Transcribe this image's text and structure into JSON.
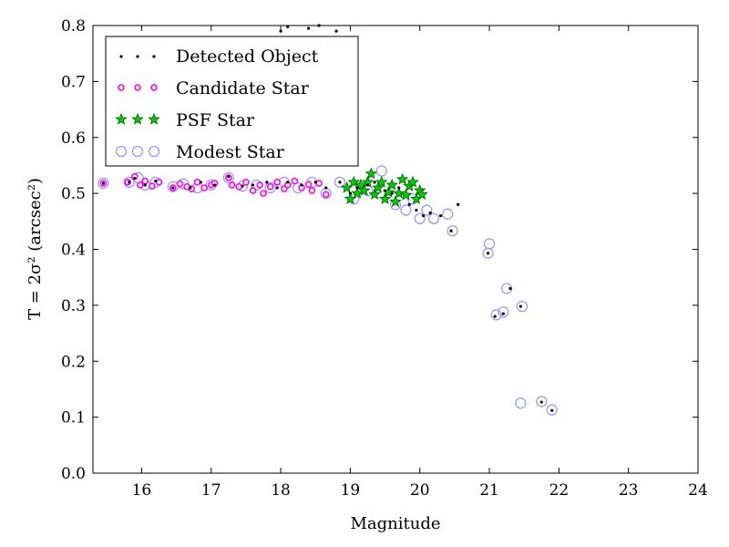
{
  "chart_data": {
    "type": "scatter",
    "title": "",
    "xlabel": "Magnitude",
    "ylabel": "T = 2σ² (arcsec²)",
    "xlim": [
      15.3,
      24
    ],
    "ylim": [
      0.0,
      0.8
    ],
    "xticks": [
      "16",
      "17",
      "18",
      "19",
      "20",
      "21",
      "22",
      "23",
      "24"
    ],
    "yticks": [
      "0.0",
      "0.1",
      "0.2",
      "0.3",
      "0.4",
      "0.5",
      "0.6",
      "0.7",
      "0.8"
    ],
    "grid": false,
    "legend_position": "top-left",
    "colors": {
      "detected": "#000000",
      "candidate": "#ff00ff",
      "psf_fill": "#00cc00",
      "psf_edge": "#006400",
      "modest": "#9999ff"
    },
    "series": [
      {
        "name": "Detected Object",
        "marker": "dot",
        "x": [
          15.45,
          15.82,
          15.9,
          16.05,
          16.2,
          16.45,
          16.7,
          16.85,
          17.05,
          17.25,
          17.45,
          17.6,
          17.8,
          17.95,
          18.1,
          18.3,
          18.5,
          18.65,
          18.85,
          19.0,
          19.1,
          19.25,
          19.35,
          19.5,
          19.6,
          19.7,
          19.85,
          19.95,
          20.05,
          20.15,
          20.3,
          20.45,
          20.55,
          20.98,
          21.08,
          21.2,
          21.3,
          21.45,
          21.75,
          21.9,
          18.0,
          18.1,
          18.4,
          18.55,
          18.8
        ],
        "y": [
          0.518,
          0.52,
          0.527,
          0.515,
          0.522,
          0.51,
          0.51,
          0.52,
          0.515,
          0.53,
          0.513,
          0.515,
          0.52,
          0.51,
          0.52,
          0.515,
          0.52,
          0.51,
          0.52,
          0.5,
          0.51,
          0.515,
          0.52,
          0.505,
          0.5,
          0.51,
          0.48,
          0.47,
          0.46,
          0.465,
          0.46,
          0.433,
          0.48,
          0.393,
          0.28,
          0.285,
          0.33,
          0.298,
          0.127,
          0.112,
          0.79,
          0.798,
          0.795,
          0.8,
          0.79
        ]
      },
      {
        "name": "Candidate Star",
        "marker": "circle",
        "x": [
          15.45,
          15.8,
          15.9,
          15.98,
          16.05,
          16.15,
          16.25,
          16.45,
          16.55,
          16.65,
          16.72,
          16.8,
          16.9,
          17.0,
          17.05,
          17.25,
          17.3,
          17.4,
          17.5,
          17.6,
          17.7,
          17.75,
          17.85,
          17.95,
          18.05,
          18.1,
          18.2,
          18.3,
          18.4,
          18.45,
          18.55,
          18.65
        ],
        "y": [
          0.518,
          0.52,
          0.53,
          0.515,
          0.522,
          0.513,
          0.52,
          0.51,
          0.517,
          0.512,
          0.508,
          0.52,
          0.51,
          0.515,
          0.518,
          0.528,
          0.515,
          0.512,
          0.52,
          0.505,
          0.515,
          0.5,
          0.512,
          0.52,
          0.508,
          0.515,
          0.522,
          0.51,
          0.516,
          0.505,
          0.518,
          0.498
        ]
      },
      {
        "name": "PSF Star",
        "marker": "star",
        "x": [
          18.95,
          19.0,
          19.05,
          19.1,
          19.15,
          19.2,
          19.25,
          19.3,
          19.35,
          19.4,
          19.45,
          19.5,
          19.55,
          19.6,
          19.65,
          19.7,
          19.75,
          19.8,
          19.85,
          19.9,
          19.95,
          20.0,
          20.03
        ],
        "y": [
          0.51,
          0.49,
          0.52,
          0.5,
          0.515,
          0.505,
          0.52,
          0.535,
          0.498,
          0.51,
          0.52,
          0.49,
          0.502,
          0.515,
          0.485,
          0.5,
          0.525,
          0.497,
          0.513,
          0.52,
          0.49,
          0.505,
          0.498
        ]
      },
      {
        "name": "Modest Star",
        "marker": "open-circle",
        "x": [
          15.45,
          15.82,
          15.95,
          16.05,
          16.2,
          16.45,
          16.6,
          16.8,
          17.0,
          17.25,
          17.45,
          17.65,
          17.85,
          18.05,
          18.25,
          18.45,
          18.65,
          18.85,
          19.05,
          19.25,
          19.45,
          19.65,
          19.8,
          19.9,
          20.0,
          20.1,
          20.2,
          20.4,
          20.47,
          20.98,
          21.0,
          21.1,
          21.2,
          21.25,
          21.47,
          21.45,
          21.75,
          21.9
        ],
        "y": [
          0.518,
          0.52,
          0.528,
          0.515,
          0.52,
          0.512,
          0.517,
          0.51,
          0.515,
          0.528,
          0.513,
          0.515,
          0.51,
          0.52,
          0.51,
          0.52,
          0.5,
          0.52,
          0.49,
          0.505,
          0.54,
          0.48,
          0.47,
          0.49,
          0.455,
          0.47,
          0.455,
          0.463,
          0.433,
          0.393,
          0.41,
          0.283,
          0.288,
          0.33,
          0.298,
          0.125,
          0.128,
          0.113
        ]
      }
    ]
  }
}
